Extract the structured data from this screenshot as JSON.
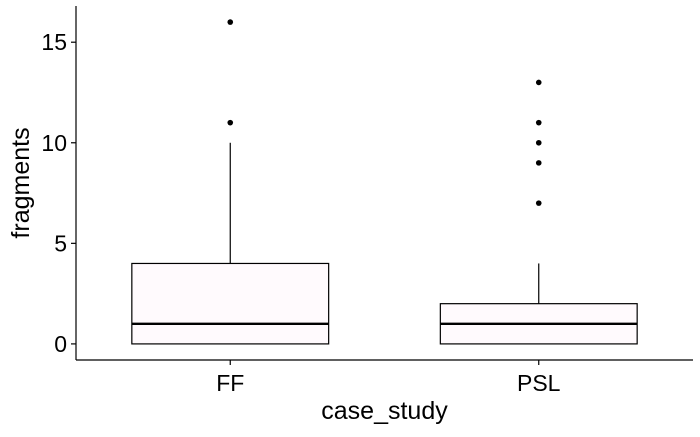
{
  "chart_data": {
    "type": "boxplot",
    "title": "",
    "xlabel": "case_study",
    "ylabel": "fragments",
    "categories": [
      "FF",
      "PSL"
    ],
    "ylim": [
      -0.8,
      16.8
    ],
    "yticks": [
      0,
      5,
      10,
      15
    ],
    "grid": false,
    "legend": "none",
    "boxes": [
      {
        "category": "FF",
        "q1": 0,
        "median": 1,
        "q3": 4,
        "whisker_low": 0,
        "whisker_high": 10,
        "outliers": [
          11,
          16
        ]
      },
      {
        "category": "PSL",
        "q1": 0,
        "median": 1,
        "q3": 2,
        "whisker_low": 0,
        "whisker_high": 4,
        "outliers": [
          7,
          9,
          10,
          11,
          13
        ]
      }
    ],
    "colors": {
      "box_fill": "#fffafd",
      "stroke": "#000000"
    }
  }
}
